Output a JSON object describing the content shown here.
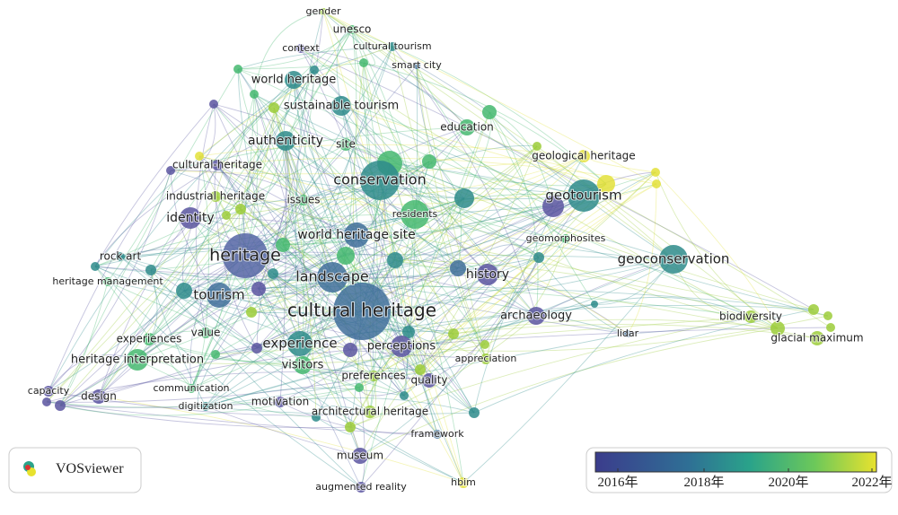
{
  "nodes": [
    {
      "label": "gender"
    },
    {
      "label": "unesco"
    },
    {
      "label": "context"
    },
    {
      "label": "cultural tourism"
    },
    {
      "label": "smart city"
    },
    {
      "label": "world heritage"
    },
    {
      "label": "sustainable tourism"
    },
    {
      "label": "education"
    },
    {
      "label": "authenticity"
    },
    {
      "label": "site"
    },
    {
      "label": "geological heritage"
    },
    {
      "label": "cultural-heritage"
    },
    {
      "label": "conservation"
    },
    {
      "label": "geotourism"
    },
    {
      "label": "industrial heritage"
    },
    {
      "label": "issues"
    },
    {
      "label": "identity"
    },
    {
      "label": "residents"
    },
    {
      "label": "world heritage site"
    },
    {
      "label": "geomorphosites"
    },
    {
      "label": "heritage"
    },
    {
      "label": "geoconservation"
    },
    {
      "label": "rock art"
    },
    {
      "label": "landscape"
    },
    {
      "label": "history"
    },
    {
      "label": "heritage management"
    },
    {
      "label": "tourism"
    },
    {
      "label": "cultural heritage"
    },
    {
      "label": "archaeology"
    },
    {
      "label": "biodiversity"
    },
    {
      "label": "value"
    },
    {
      "label": "experiences"
    },
    {
      "label": "experience"
    },
    {
      "label": "perceptions"
    },
    {
      "label": "lidar"
    },
    {
      "label": "glacial maximum"
    },
    {
      "label": "appreciation"
    },
    {
      "label": "heritage interpretation"
    },
    {
      "label": "visitors"
    },
    {
      "label": "preferences"
    },
    {
      "label": "quality"
    },
    {
      "label": "capacity"
    },
    {
      "label": "communication"
    },
    {
      "label": "design"
    },
    {
      "label": "digitization"
    },
    {
      "label": "motivation"
    },
    {
      "label": "architectural heritage"
    },
    {
      "label": "framework"
    },
    {
      "label": "museum"
    },
    {
      "label": "augmented reality"
    },
    {
      "label": "hbim"
    }
  ],
  "legend": {
    "logo": "VOSviewer",
    "ticks": [
      "2016年",
      "2018年",
      "2020年",
      "2022年"
    ]
  }
}
